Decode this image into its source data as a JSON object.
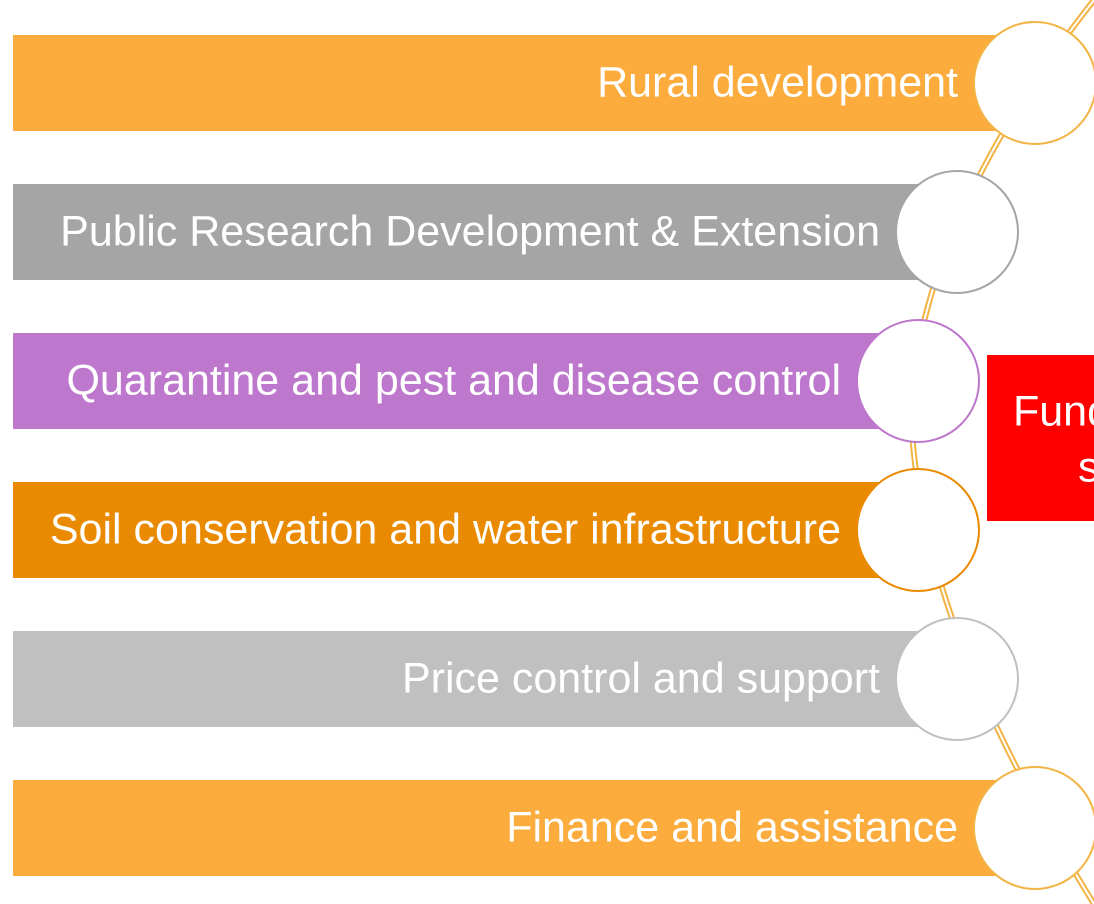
{
  "items": [
    {
      "label": "Rural development"
    },
    {
      "label": "Public Research Development & Extension"
    },
    {
      "label": "Quarantine and pest and disease control"
    },
    {
      "label": "Soil conservation and water infrastructure"
    },
    {
      "label": "Price control and support"
    },
    {
      "label": "Finance and assistance"
    }
  ],
  "box": {
    "lines": [
      "Fund",
      "s"
    ]
  }
}
